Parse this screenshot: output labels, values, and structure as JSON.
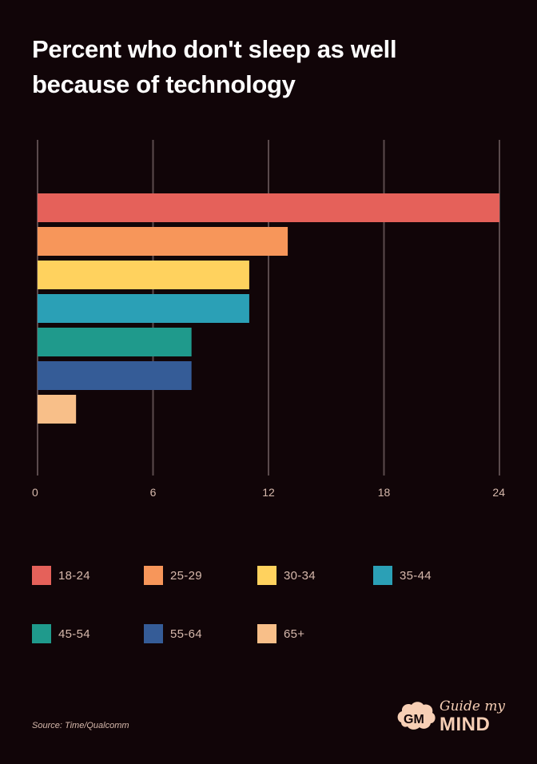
{
  "title_lines": [
    "Percent who don't sleep as well",
    "because of technology"
  ],
  "source": "Source: Time/Qualcomm",
  "brand": {
    "script": "Guide my",
    "word": "MIND"
  },
  "colors": {
    "background": "#110508",
    "grid": "#5a4a4c",
    "tick": "#d7b9ac"
  },
  "chart_data": {
    "type": "bar",
    "orientation": "horizontal",
    "categories": [
      "18-24",
      "25-29",
      "30-34",
      "35-44",
      "45-54",
      "55-64",
      "65+"
    ],
    "values": [
      24,
      13,
      11,
      11,
      8,
      8,
      2
    ],
    "colors": [
      "#e5615a",
      "#f7965a",
      "#ffd25e",
      "#2ba0b6",
      "#1f9a8c",
      "#355c97",
      "#f8bf89"
    ],
    "xticks": [
      0,
      6,
      12,
      18,
      24
    ],
    "xlim": [
      0,
      24
    ],
    "grid": true,
    "legend_position": "bottom"
  }
}
